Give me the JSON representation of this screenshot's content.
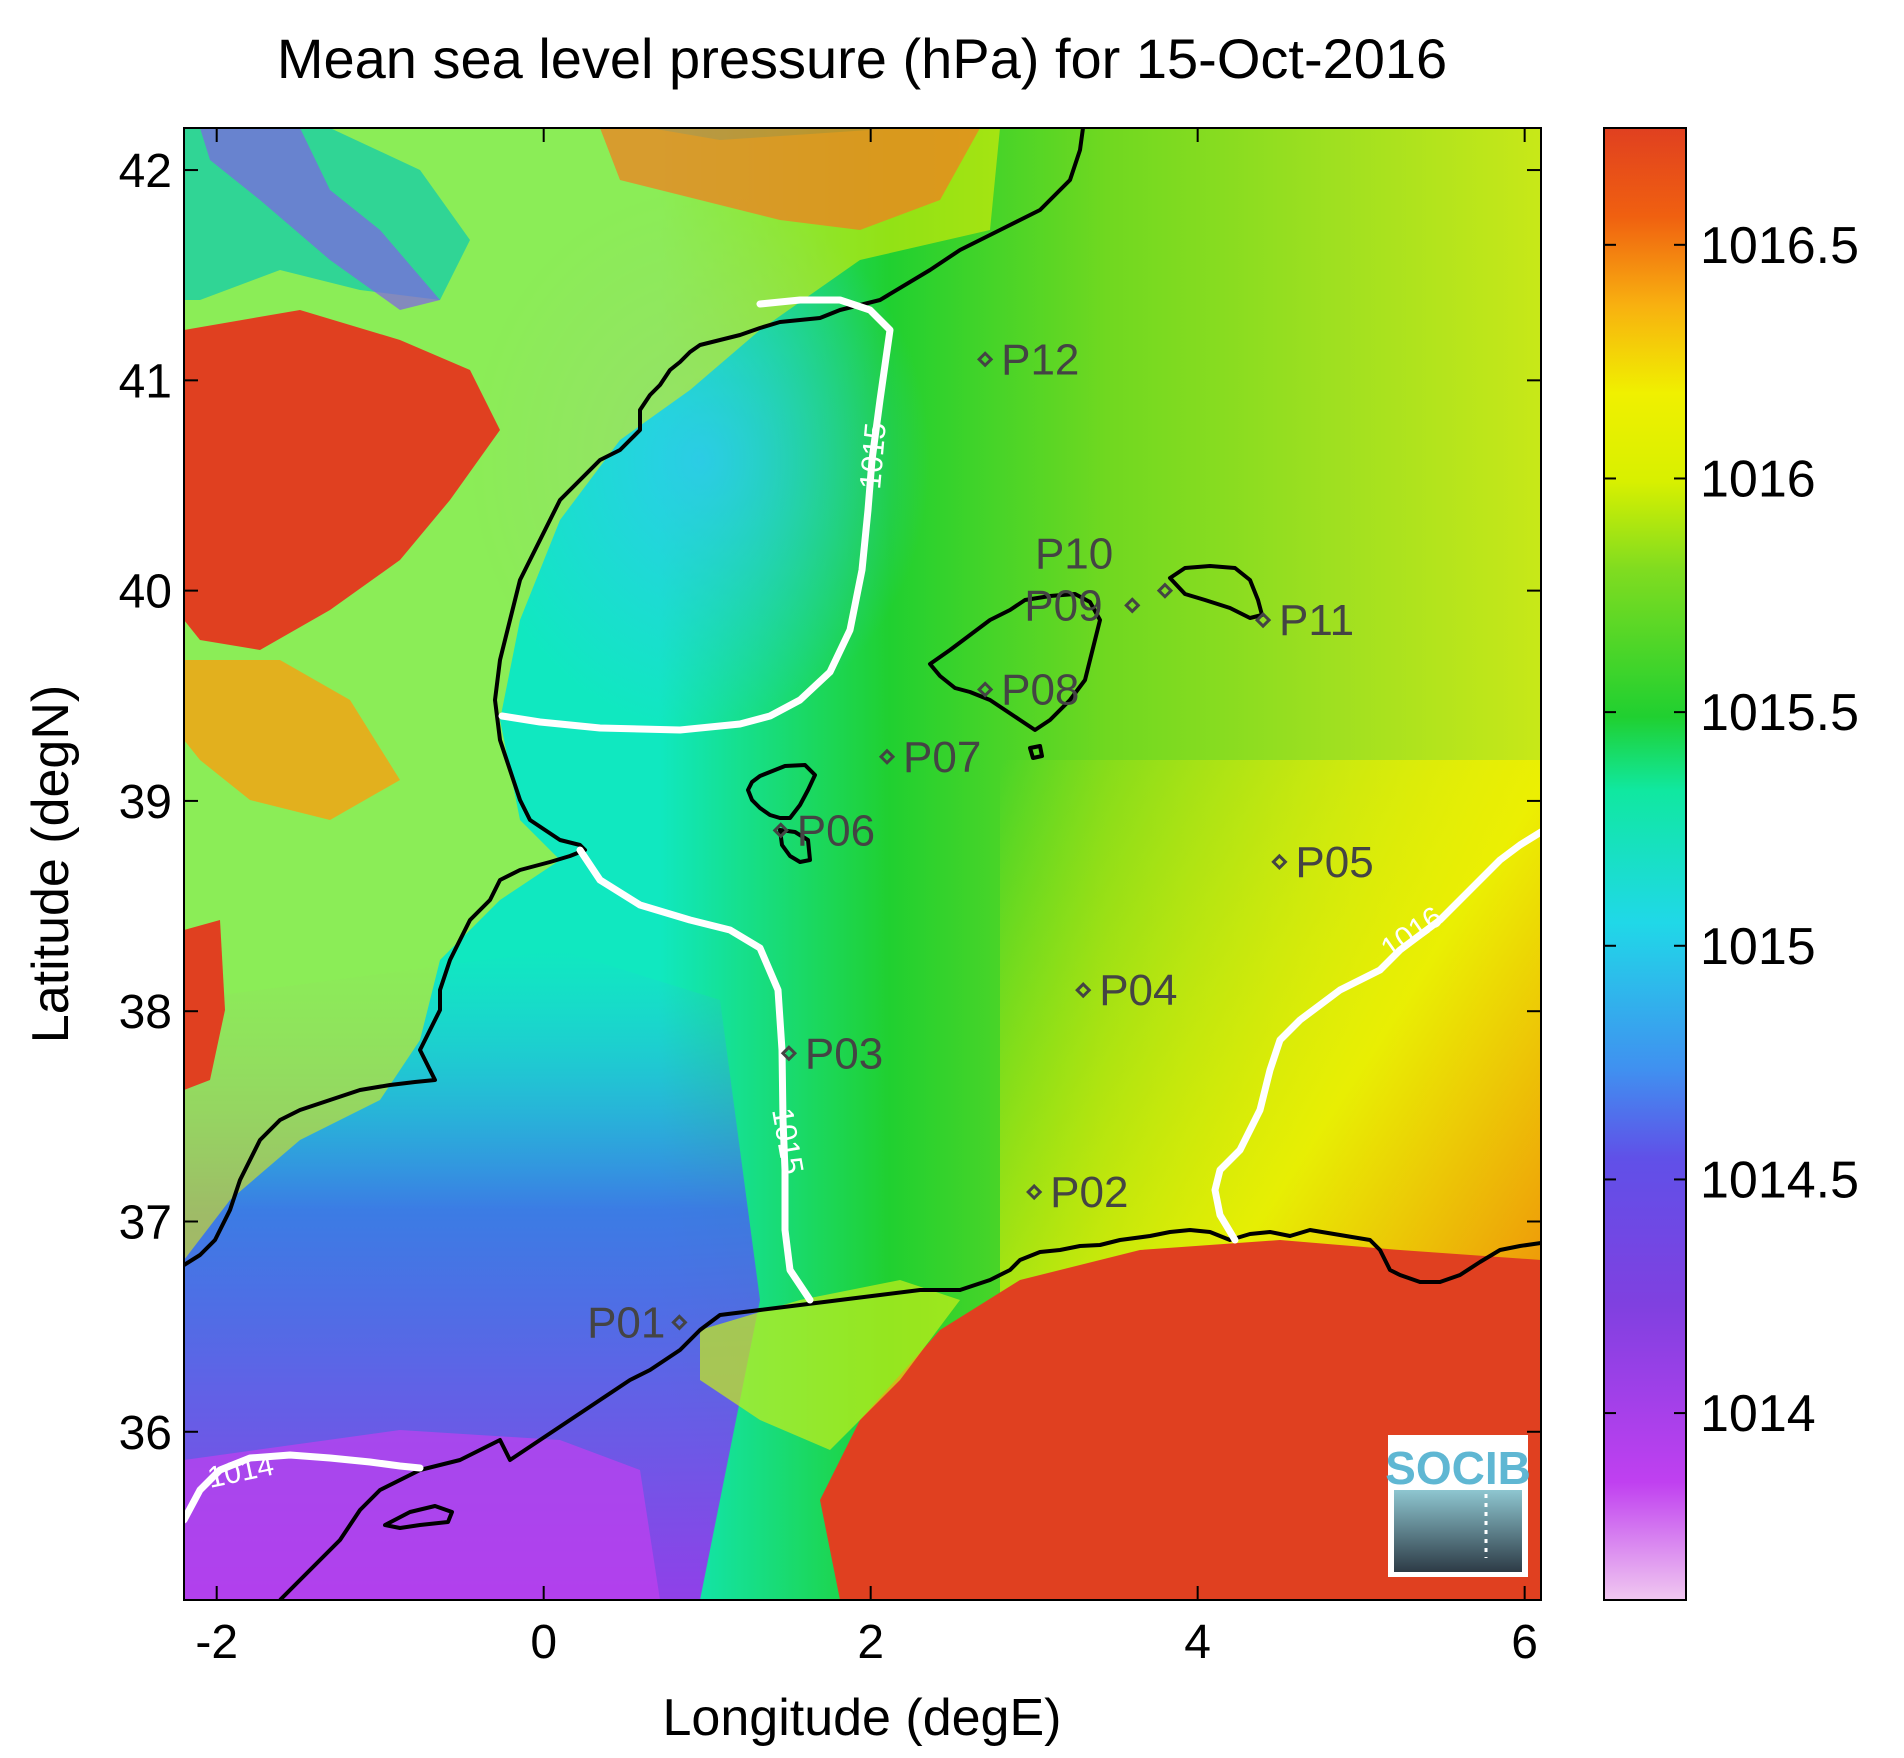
{
  "title": "Mean sea level pressure (hPa) for 15-Oct-2016",
  "xlabel": "Longitude (degE)",
  "ylabel": "Latitude (degN)",
  "x_ticks": [
    "-2",
    "0",
    "2",
    "4",
    "6"
  ],
  "y_ticks": [
    "42",
    "41",
    "40",
    "39",
    "38",
    "37",
    "36"
  ],
  "colorbar_ticks": [
    "1016.5",
    "1016",
    "1015.5",
    "1015",
    "1014.5",
    "1014"
  ],
  "logo_text": "SOCIB",
  "chart_data": {
    "type": "heatmap",
    "title": "Mean sea level pressure (hPa) for 15-Oct-2016",
    "xlabel": "Longitude (degE)",
    "ylabel": "Latitude (degN)",
    "xlim": [
      -2.2,
      6.1
    ],
    "ylim": [
      35.2,
      42.2
    ],
    "colorbar": {
      "min": 1013.6,
      "max": 1016.75,
      "ticks": [
        1014,
        1014.5,
        1015,
        1015.5,
        1016,
        1016.5
      ],
      "colormap": [
        "#f0c8f0",
        "#c040f0",
        "#7a40e0",
        "#4070e8",
        "#30c8f0",
        "#10e8c0",
        "#20d030",
        "#a0e020",
        "#f0f000",
        "#f8b010",
        "#f05010",
        "#e04020"
      ]
    },
    "contour_labels": [
      "1015",
      "1015",
      "1016",
      "1014"
    ],
    "stations": [
      {
        "name": "P01",
        "lon": 0.83,
        "lat": 36.52
      },
      {
        "name": "P02",
        "lon": 3.0,
        "lat": 37.14
      },
      {
        "name": "P03",
        "lon": 1.5,
        "lat": 37.8
      },
      {
        "name": "P04",
        "lon": 3.3,
        "lat": 38.1
      },
      {
        "name": "P05",
        "lon": 4.5,
        "lat": 38.71
      },
      {
        "name": "P06",
        "lon": 1.45,
        "lat": 38.86
      },
      {
        "name": "P07",
        "lon": 2.1,
        "lat": 39.21
      },
      {
        "name": "P08",
        "lon": 2.7,
        "lat": 39.53
      },
      {
        "name": "P09",
        "lon": 3.6,
        "lat": 39.93
      },
      {
        "name": "P10",
        "lon": 3.8,
        "lat": 40.0
      },
      {
        "name": "P11",
        "lon": 4.4,
        "lat": 39.86
      },
      {
        "name": "P12",
        "lon": 2.7,
        "lat": 41.1
      }
    ]
  }
}
